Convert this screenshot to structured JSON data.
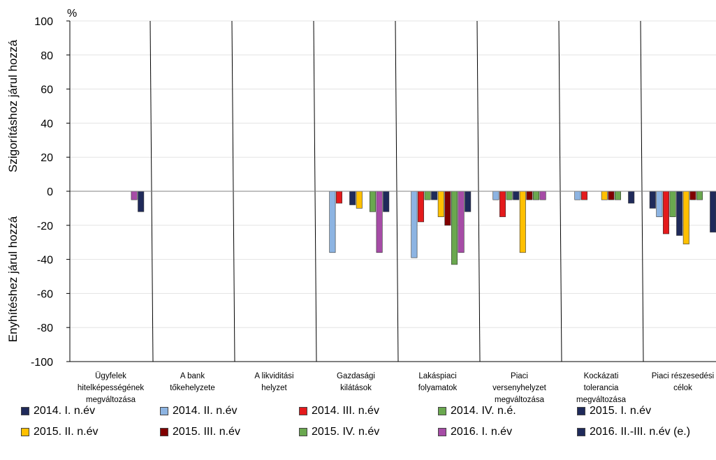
{
  "chart_data": {
    "type": "bar",
    "y_unit_label": "%",
    "ylabel_upper": "Szigorításhoz járul hozzá",
    "ylabel_lower": "Enyhítéshez járul hozzá",
    "ylim": [
      -100,
      100
    ],
    "yticks": [
      100,
      80,
      60,
      40,
      20,
      0,
      -20,
      -40,
      -60,
      -80,
      -100
    ],
    "grid": true,
    "legend_position": "bottom",
    "categories": [
      [
        "Ügyfelek",
        "hitelképességének",
        "megváltozása"
      ],
      [
        "A bank",
        "tőkehelyzete"
      ],
      [
        "A likviditási",
        "helyzet"
      ],
      [
        "Gazdasági",
        "kilátások"
      ],
      [
        "Lakáspiaci",
        "folyamatok"
      ],
      [
        "Piaci",
        "versenyhelyzet",
        "megváltozása"
      ],
      [
        "Kockázati",
        "tolerancia",
        "megváltozása"
      ],
      [
        "Piaci részesedési",
        "célok"
      ]
    ],
    "series": [
      {
        "name": "2014. I. n.év",
        "color": "#1f2a5a",
        "values": [
          0,
          0,
          0,
          0,
          0,
          0,
          0,
          -10
        ]
      },
      {
        "name": "2014. II. n.év",
        "color": "#8db4e2",
        "values": [
          0,
          0,
          0,
          -36,
          -39,
          -5,
          -5,
          -15
        ]
      },
      {
        "name": "2014. III. n.év",
        "color": "#e41a1c",
        "values": [
          0,
          0,
          0,
          -7,
          -18,
          -15,
          -5,
          -25
        ]
      },
      {
        "name": "2014. IV. n.é.",
        "color": "#6aa84f",
        "values": [
          0,
          0,
          0,
          0,
          -5,
          -5,
          0,
          -15
        ]
      },
      {
        "name": "2015. I. n.év",
        "color": "#1f2a5a",
        "values": [
          0,
          0,
          0,
          -8,
          -5,
          -5,
          0,
          -26
        ]
      },
      {
        "name": "2015. II. n.év",
        "color": "#ffc000",
        "values": [
          0,
          0,
          0,
          -10,
          -15,
          -36,
          -5,
          -31
        ]
      },
      {
        "name": "2015. III. n.év",
        "color": "#800000",
        "values": [
          0,
          0,
          0,
          0,
          -20,
          -5,
          -5,
          -5
        ]
      },
      {
        "name": "2015. IV. n.év",
        "color": "#6aa84f",
        "values": [
          0,
          0,
          0,
          -12,
          -43,
          -5,
          -5,
          -5
        ]
      },
      {
        "name": "2016. I. n.év",
        "color": "#a64ca6",
        "values": [
          -5,
          0,
          0,
          -36,
          -36,
          -5,
          0,
          0
        ]
      },
      {
        "name": "2016. II.-III. n.év (e.)",
        "color": "#1f2a5a",
        "values": [
          -12,
          0,
          0,
          -12,
          -12,
          0,
          -7,
          -24
        ]
      }
    ]
  }
}
